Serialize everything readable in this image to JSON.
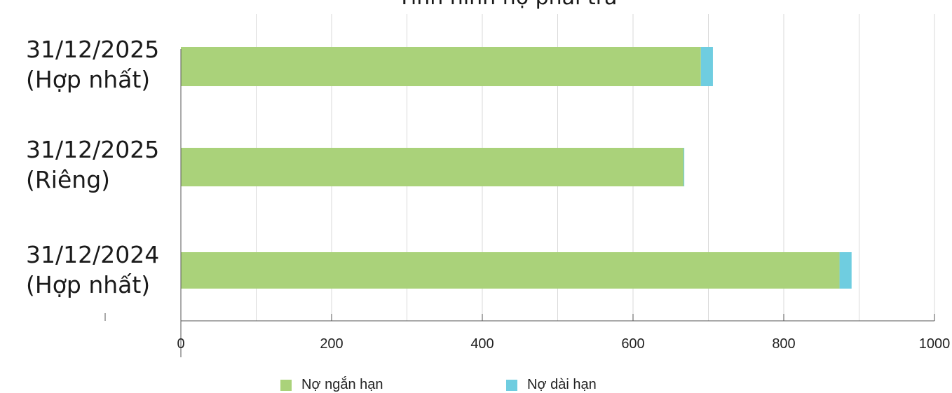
{
  "chart_data": {
    "type": "bar",
    "orientation": "horizontal",
    "stacked": true,
    "title": "Tình hình nợ phải trả",
    "categories": [
      "31/12/2025 (Hợp nhất)",
      "31/12/2025 (Riêng)",
      "31/12/2024 (Hợp nhất)"
    ],
    "category_lines": [
      [
        "31/12/2025",
        "(Hợp nhất)"
      ],
      [
        "31/12/2025",
        "(Riêng)"
      ],
      [
        "31/12/2024",
        "(Hợp nhất)"
      ]
    ],
    "series": [
      {
        "name": "Nợ ngắn hạn",
        "color": "#aad27a",
        "values": [
          690,
          667,
          874
        ]
      },
      {
        "name": "Nợ dài hạn",
        "color": "#6fcde0",
        "values": [
          16,
          1,
          16
        ]
      }
    ],
    "xlim": [
      0,
      1000
    ],
    "xticks": [
      0,
      200,
      400,
      600,
      800,
      1000
    ],
    "grid": true,
    "legend_position": "bottom"
  }
}
